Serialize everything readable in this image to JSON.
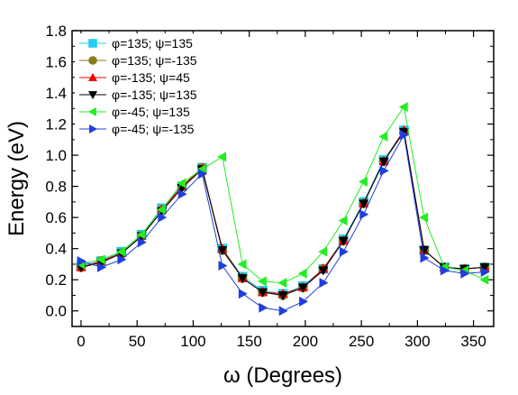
{
  "chart_data": {
    "type": "line",
    "xlabel": "ω (Degrees)",
    "ylabel": "Energy (eV)",
    "xlim": [
      -8,
      368
    ],
    "ylim": [
      -0.1,
      1.8
    ],
    "x_ticks": [
      0,
      50,
      100,
      150,
      200,
      250,
      300,
      350
    ],
    "x_tick_labels": [
      "0",
      "50",
      "100",
      "150",
      "200",
      "250",
      "300",
      "350"
    ],
    "y_ticks": [
      0.0,
      0.2,
      0.4,
      0.6,
      0.8,
      1.0,
      1.2,
      1.4,
      1.6,
      1.8
    ],
    "y_tick_labels": [
      "0.0",
      "0.2",
      "0.4",
      "0.6",
      "0.8",
      "1.0",
      "1.2",
      "1.4",
      "1.6",
      "1.8"
    ],
    "grid": false,
    "legend_position": "top-left",
    "x": [
      0,
      18,
      36,
      54,
      72,
      90,
      108,
      126,
      144,
      162,
      180,
      198,
      216,
      234,
      252,
      270,
      288,
      306,
      324,
      342,
      360
    ],
    "series": [
      {
        "name": "φ=135; ψ=135",
        "color": "#22ccee",
        "marker": "square",
        "values": [
          0.29,
          0.32,
          0.38,
          0.49,
          0.66,
          0.8,
          0.92,
          0.4,
          0.22,
          0.13,
          0.11,
          0.16,
          0.27,
          0.46,
          0.7,
          0.97,
          1.16,
          0.39,
          0.28,
          0.27,
          0.28
        ]
      },
      {
        "name": "φ=135; ψ=-135",
        "color": "#8a7a1e",
        "marker": "circle",
        "values": [
          0.28,
          0.32,
          0.37,
          0.48,
          0.65,
          0.8,
          0.92,
          0.39,
          0.21,
          0.12,
          0.1,
          0.15,
          0.27,
          0.45,
          0.69,
          0.96,
          1.15,
          0.39,
          0.28,
          0.27,
          0.28
        ]
      },
      {
        "name": "φ=-135; ψ=45",
        "color": "#ff0000",
        "marker": "triangle-up",
        "values": [
          0.28,
          0.32,
          0.37,
          0.48,
          0.65,
          0.8,
          0.91,
          0.4,
          0.21,
          0.12,
          0.11,
          0.15,
          0.27,
          0.45,
          0.69,
          0.96,
          1.16,
          0.39,
          0.28,
          0.27,
          0.28
        ]
      },
      {
        "name": "φ=-135; ψ=135",
        "color": "#000000",
        "marker": "triangle-down",
        "values": [
          0.28,
          0.31,
          0.37,
          0.48,
          0.64,
          0.79,
          0.91,
          0.39,
          0.21,
          0.12,
          0.1,
          0.15,
          0.26,
          0.45,
          0.69,
          0.96,
          1.15,
          0.39,
          0.28,
          0.27,
          0.28
        ]
      },
      {
        "name": "φ=-45; ψ=135",
        "color": "#22ee22",
        "marker": "triangle-left",
        "values": [
          0.3,
          0.33,
          0.38,
          0.49,
          0.65,
          0.82,
          0.91,
          0.99,
          0.3,
          0.19,
          0.18,
          0.24,
          0.38,
          0.58,
          0.83,
          1.12,
          1.31,
          0.6,
          0.28,
          0.26,
          0.2
        ]
      },
      {
        "name": "φ=-45; ψ=-135",
        "color": "#1f3fdd",
        "marker": "triangle-right",
        "values": [
          0.32,
          0.28,
          0.33,
          0.44,
          0.6,
          0.75,
          0.88,
          0.29,
          0.11,
          0.02,
          0.0,
          0.06,
          0.18,
          0.38,
          0.62,
          0.9,
          1.13,
          0.34,
          0.26,
          0.24,
          0.25
        ]
      }
    ]
  }
}
